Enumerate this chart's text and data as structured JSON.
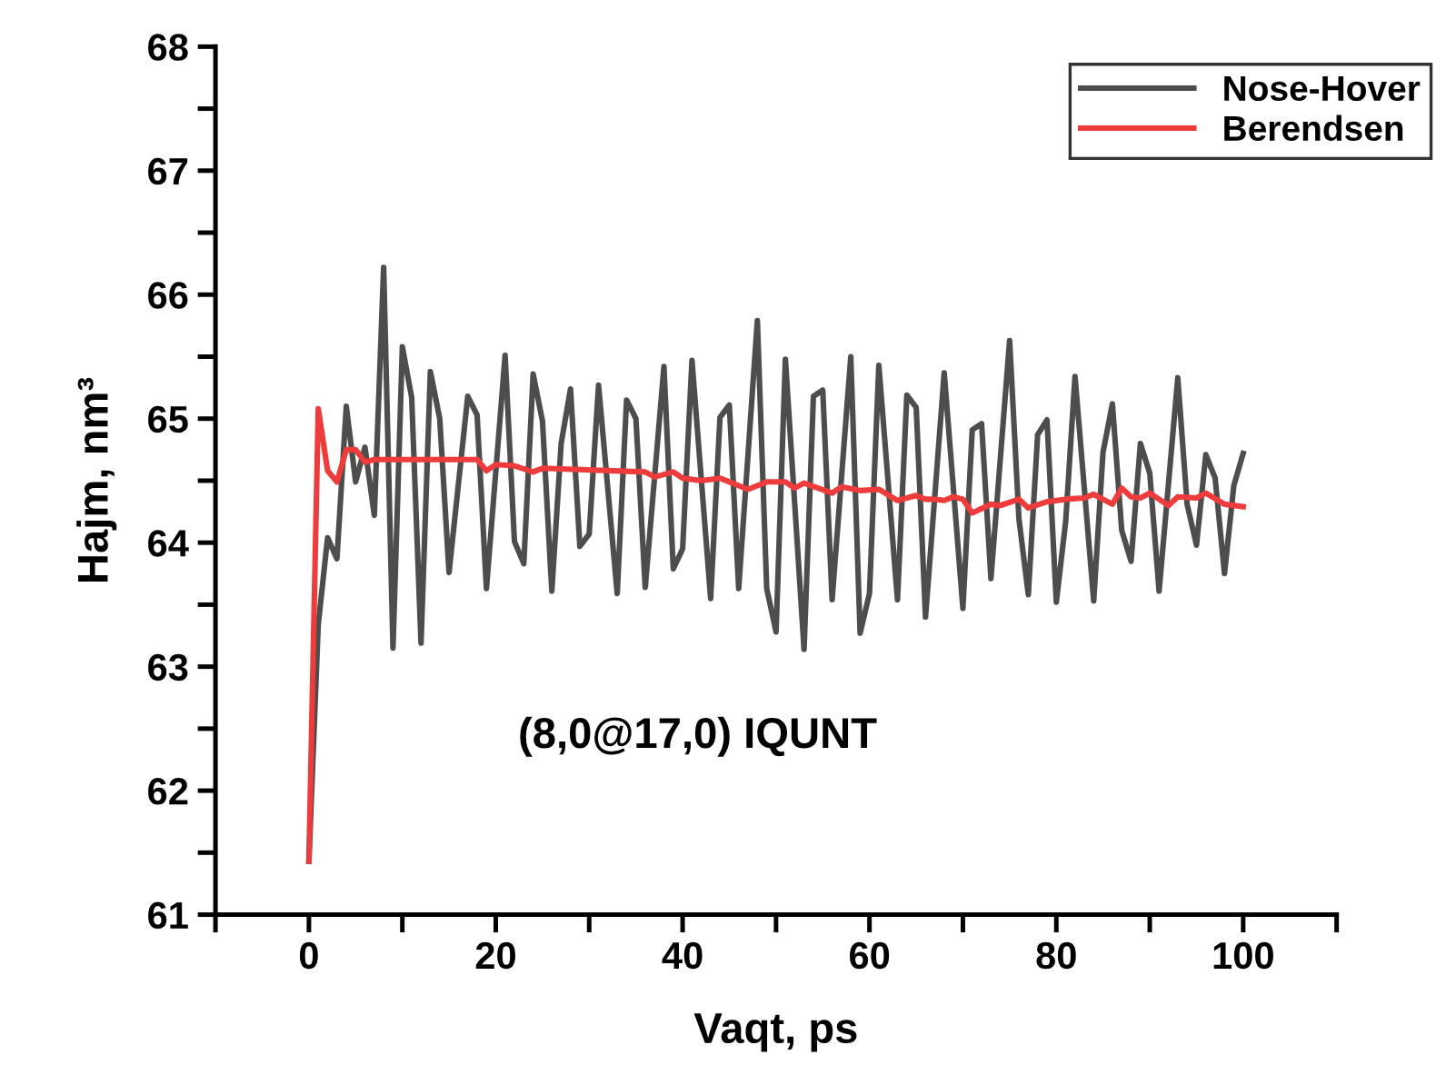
{
  "chart_data": {
    "type": "line",
    "xlabel": "Vaqt, ps",
    "ylabel": "Hajm, nm³",
    "annotations": [
      "(8,0@17,0) IQUNT"
    ],
    "xlim": [
      -10,
      110
    ],
    "xticks": [
      {
        "value": -10,
        "label": null
      },
      0,
      {
        "value": 10,
        "label": null
      },
      20,
      {
        "value": 30,
        "label": null
      },
      40,
      {
        "value": 50,
        "label": null
      },
      60,
      {
        "value": 70,
        "label": null
      },
      80,
      {
        "value": 90,
        "label": null
      },
      100,
      {
        "value": 110,
        "label": null
      }
    ],
    "ylim": [
      61,
      68
    ],
    "yticks": [
      61,
      {
        "value": 61.5,
        "label": null
      },
      62,
      {
        "value": 62.5,
        "label": null
      },
      63,
      {
        "value": 63.5,
        "label": null
      },
      64,
      {
        "value": 64.5,
        "label": null
      },
      65,
      {
        "value": 65.5,
        "label": null
      },
      66,
      {
        "value": 66.5,
        "label": null
      },
      67,
      {
        "value": 67.5,
        "label": null
      },
      68
    ],
    "grid": false,
    "legend": "top right",
    "marker": "none",
    "line_style": "solid",
    "series": [
      {
        "name": "Nose-Hover",
        "color": "#4d4d4d",
        "x": [
          0,
          1,
          2,
          3,
          4,
          5,
          6,
          7,
          8,
          9,
          10,
          11,
          12,
          13,
          14,
          15,
          17,
          18,
          19,
          21,
          22,
          23,
          24,
          25,
          26,
          27,
          28,
          29,
          30,
          31,
          33,
          34,
          35,
          36,
          38,
          39,
          40,
          41,
          43,
          44,
          45,
          46,
          48,
          49,
          50,
          51,
          53,
          54,
          55,
          56,
          58,
          59,
          60,
          61,
          63,
          64,
          65,
          66,
          68,
          70,
          71,
          72,
          73,
          75,
          76,
          77,
          78,
          79,
          80,
          81,
          82,
          84,
          85,
          86,
          87,
          88,
          89,
          90,
          91,
          93,
          94,
          95,
          96,
          97,
          98,
          99,
          100
        ],
        "values": [
          61.43,
          63.34,
          64.04,
          63.87,
          65.1,
          64.49,
          64.77,
          64.22,
          66.22,
          63.15,
          65.58,
          65.17,
          63.19,
          65.38,
          65.0,
          63.76,
          65.18,
          65.03,
          63.63,
          65.51,
          64.01,
          63.83,
          65.36,
          64.98,
          63.61,
          64.8,
          65.24,
          63.97,
          64.07,
          65.27,
          63.59,
          65.15,
          65.0,
          63.64,
          65.42,
          63.79,
          63.95,
          65.47,
          63.55,
          65.01,
          65.11,
          63.63,
          65.79,
          63.63,
          63.28,
          65.48,
          63.14,
          65.18,
          65.23,
          63.54,
          65.5,
          63.27,
          63.59,
          65.43,
          63.54,
          65.19,
          65.09,
          63.4,
          65.37,
          63.47,
          64.91,
          64.96,
          63.71,
          65.63,
          64.19,
          63.58,
          64.87,
          64.99,
          63.52,
          64.17,
          65.34,
          63.53,
          64.73,
          65.12,
          64.1,
          63.85,
          64.8,
          64.56,
          63.61,
          65.33,
          64.31,
          63.98,
          64.71,
          64.52,
          63.75,
          64.46,
          64.72
        ]
      },
      {
        "name": "Berendsen",
        "color": "#ee3b3b",
        "x": [
          0,
          1,
          2,
          3,
          4,
          5,
          6,
          7,
          18,
          19,
          20,
          22,
          24,
          25,
          36,
          37,
          39,
          40,
          42,
          44,
          45,
          47,
          49,
          51,
          52,
          53,
          56,
          57,
          59,
          61,
          63,
          65,
          66,
          67,
          68,
          69,
          70,
          71,
          73,
          74,
          76,
          77,
          79,
          81,
          83,
          84,
          86,
          87,
          88,
          89,
          90,
          92,
          93,
          95,
          96,
          98,
          100
        ],
        "values": [
          61.43,
          65.08,
          64.58,
          64.49,
          64.75,
          64.75,
          64.65,
          64.67,
          64.67,
          64.58,
          64.63,
          64.62,
          64.57,
          64.6,
          64.57,
          64.53,
          64.57,
          64.52,
          64.5,
          64.52,
          64.49,
          64.43,
          64.49,
          64.49,
          64.44,
          64.48,
          64.4,
          64.45,
          64.42,
          64.43,
          64.34,
          64.38,
          64.35,
          64.35,
          64.34,
          64.37,
          64.35,
          64.24,
          64.31,
          64.3,
          64.35,
          64.28,
          64.33,
          64.35,
          64.36,
          64.39,
          64.31,
          64.44,
          64.37,
          64.36,
          64.4,
          64.3,
          64.37,
          64.36,
          64.4,
          64.31,
          64.29
        ]
      }
    ]
  }
}
